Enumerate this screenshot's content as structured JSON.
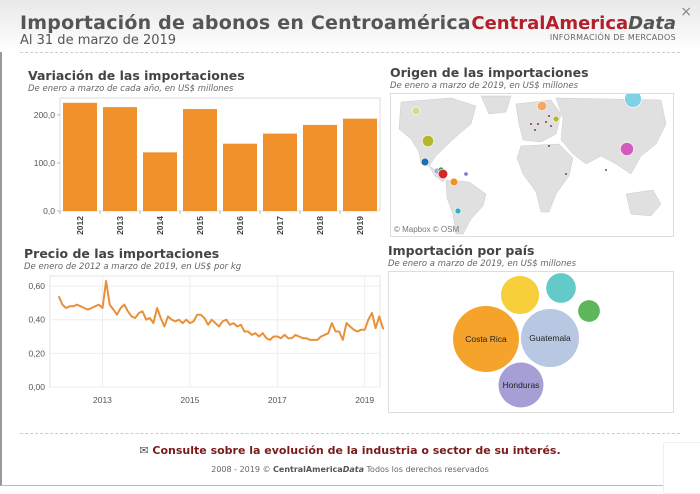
{
  "header": {
    "title": "Importación de abonos en Centroamérica",
    "subtitle": "Al 31 de marzo de 2019",
    "brand_main": "CentralAmerica",
    "brand_italic": "Data",
    "brand_tagline": "INFORMACIÓN DE MERCADOS",
    "close_icon": "×"
  },
  "panels": {
    "variation": {
      "title": "Variación de las importaciones",
      "subtitle": "De enero a marzo de cada año, en US$ millones"
    },
    "price": {
      "title": "Precio de las importaciones",
      "subtitle": "De enero de 2012 a marzo de 2019, en US$ por kg"
    },
    "origin": {
      "title": "Origen de las importaciones",
      "subtitle": "De enero a marzo de 2019, en US$ millones",
      "attribution": "© Mapbox  © OSM"
    },
    "by_country": {
      "title": "Importación por país",
      "subtitle": "De enero a marzo de 2019, en US$ millones"
    }
  },
  "colors": {
    "bar": "#f0912c",
    "line": "#e8913a",
    "brand": "#b3202a",
    "footer_link": "#7a1a1a"
  },
  "chart_data": [
    {
      "type": "bar",
      "title": "Variación de las importaciones",
      "categories": [
        "2012",
        "2013",
        "2014",
        "2015",
        "2016",
        "2017",
        "2018",
        "2019"
      ],
      "values": [
        225,
        216,
        122,
        212,
        140,
        161,
        179,
        192
      ],
      "yticks": [
        "0,0",
        "100,0",
        "200,0"
      ],
      "ytick_values": [
        0,
        100,
        200
      ],
      "ylim": [
        0,
        235
      ],
      "xlabel": "",
      "ylabel": ""
    },
    {
      "type": "line",
      "title": "Precio de las importaciones",
      "x_start": 2012.0,
      "x_step_months": 1,
      "values": [
        0.54,
        0.49,
        0.47,
        0.48,
        0.48,
        0.49,
        0.48,
        0.47,
        0.46,
        0.47,
        0.48,
        0.49,
        0.47,
        0.63,
        0.49,
        0.46,
        0.43,
        0.47,
        0.49,
        0.45,
        0.42,
        0.41,
        0.44,
        0.45,
        0.4,
        0.41,
        0.38,
        0.47,
        0.41,
        0.36,
        0.42,
        0.4,
        0.39,
        0.4,
        0.38,
        0.4,
        0.38,
        0.39,
        0.43,
        0.43,
        0.41,
        0.37,
        0.4,
        0.38,
        0.36,
        0.39,
        0.4,
        0.37,
        0.38,
        0.36,
        0.37,
        0.33,
        0.33,
        0.31,
        0.32,
        0.3,
        0.32,
        0.29,
        0.28,
        0.3,
        0.3,
        0.29,
        0.31,
        0.29,
        0.29,
        0.31,
        0.3,
        0.29,
        0.29,
        0.28,
        0.28,
        0.28,
        0.3,
        0.31,
        0.32,
        0.38,
        0.33,
        0.33,
        0.28,
        0.38,
        0.36,
        0.34,
        0.33,
        0.34,
        0.34,
        0.4,
        0.44,
        0.35,
        0.42,
        0.35,
        0.34
      ],
      "xticks": [
        "2013",
        "2015",
        "2017",
        "2019"
      ],
      "xtick_values": [
        2013,
        2015,
        2017,
        2019
      ],
      "yticks": [
        "0,00",
        "0,20",
        "0,40",
        "0,60"
      ],
      "ytick_values": [
        0,
        0.2,
        0.4,
        0.6
      ],
      "xlim": [
        2011.8,
        2019.35
      ],
      "ylim": [
        0,
        0.66
      ],
      "grid": true
    },
    {
      "type": "scatter",
      "title": "Origen de las importaciones",
      "description": "proportional symbol map",
      "points": [
        {
          "region": "Canada",
          "color": "#d6d98a",
          "size": 3
        },
        {
          "region": "United States",
          "color": "#b5b82e",
          "size": 5
        },
        {
          "region": "Mexico",
          "color": "#1f6fb0",
          "size": 3
        },
        {
          "region": "Guatemala",
          "color": "#a8a8e0",
          "size": 2
        },
        {
          "region": "Honduras",
          "color": "#3aa04a",
          "size": 2
        },
        {
          "region": "Costa Rica",
          "color": "#d62728",
          "size": 4
        },
        {
          "region": "Venezuela",
          "color": "#8a6bc7",
          "size": 1
        },
        {
          "region": "Colombia",
          "color": "#f0912c",
          "size": 3
        },
        {
          "region": "Chile",
          "color": "#2ab0c8",
          "size": 2
        },
        {
          "region": "Norway",
          "color": "#f5a863",
          "size": 4
        },
        {
          "region": "Russia",
          "color": "#7fd1e6",
          "size": 8
        },
        {
          "region": "China",
          "color": "#d45bbd",
          "size": 6
        },
        {
          "region": "Lithuania",
          "color": "#b5b82e",
          "size": 2
        }
      ]
    },
    {
      "type": "bubble",
      "title": "Importación por país",
      "bubbles": [
        {
          "label": "Costa Rica",
          "color": "#f5a32a",
          "size": 1.0,
          "show_label": true
        },
        {
          "label": "Guatemala",
          "color": "#b9c8e2",
          "size": 0.88,
          "show_label": true
        },
        {
          "label": "Honduras",
          "color": "#a59fd6",
          "size": 0.68,
          "show_label": true
        },
        {
          "label": "",
          "color": "#f6cf3a",
          "size": 0.58,
          "show_label": false
        },
        {
          "label": "",
          "color": "#63c9c9",
          "size": 0.45,
          "show_label": false
        },
        {
          "label": "",
          "color": "#5db65a",
          "size": 0.33,
          "show_label": false
        }
      ]
    }
  ],
  "footer": {
    "envelope_icon": "✉",
    "link": "Consulte sobre la evolución de la industria o sector de su interés.",
    "copyright_prefix": "2008 - 2019 ©",
    "copyright_brand": "CentralAmerica",
    "copyright_brand_italic": "Data",
    "copyright_suffix": "Todos los derechos reservados"
  }
}
